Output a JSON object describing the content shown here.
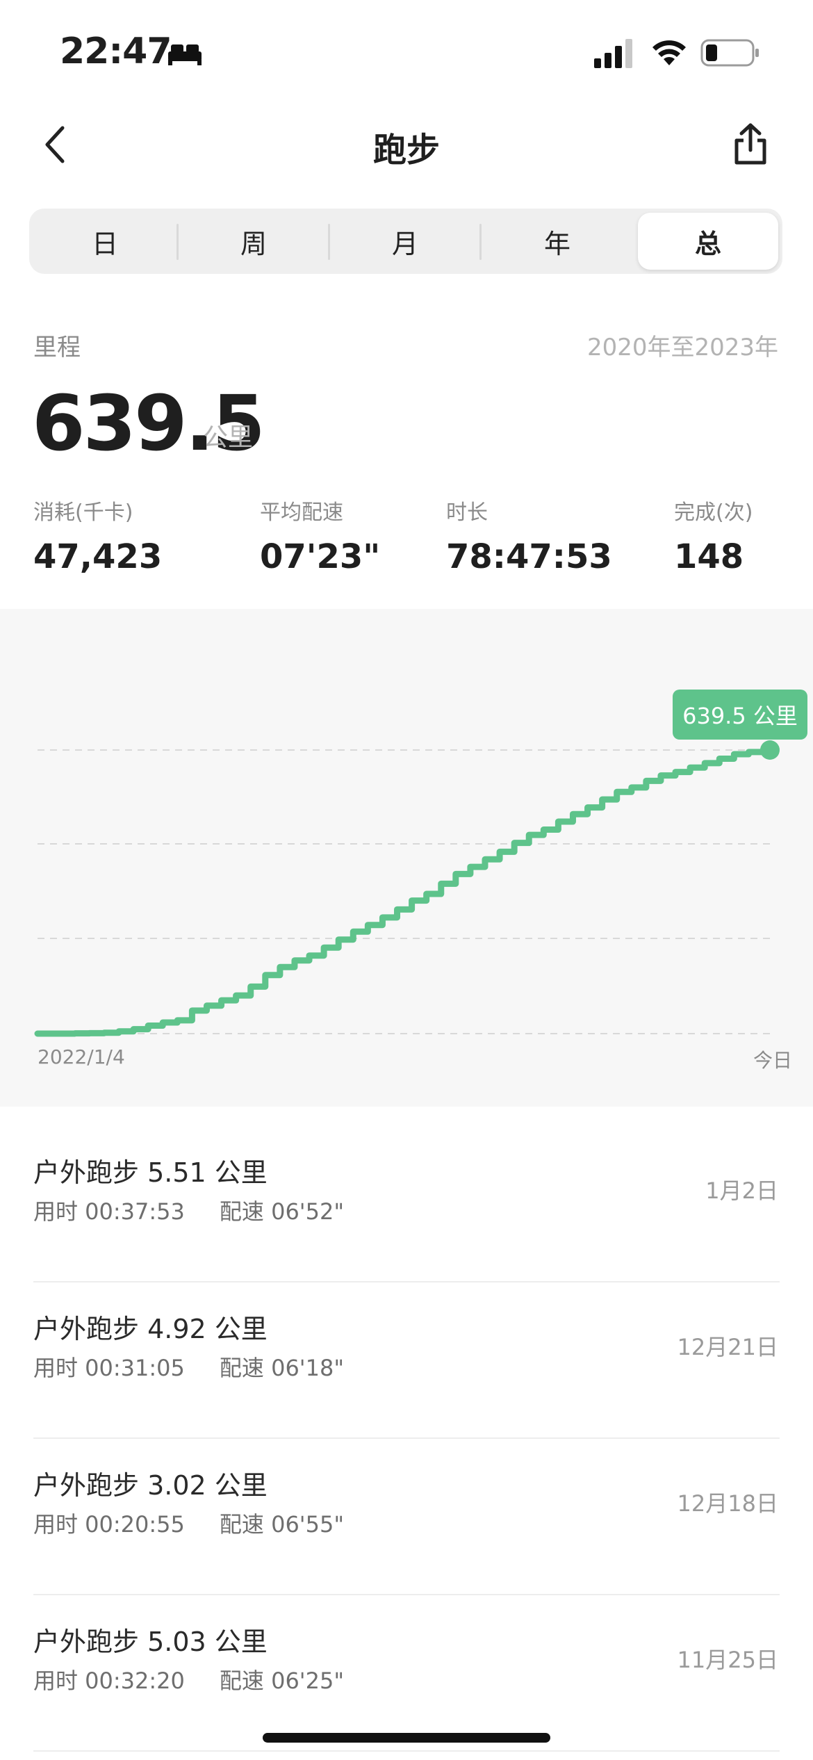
{
  "status_bar": {
    "time": "22:47"
  },
  "nav": {
    "title": "跑步"
  },
  "tabs": [
    {
      "label": "日",
      "active": false
    },
    {
      "label": "周",
      "active": false
    },
    {
      "label": "月",
      "active": false
    },
    {
      "label": "年",
      "active": false
    },
    {
      "label": "总",
      "active": true
    }
  ],
  "summary": {
    "label": "里程",
    "range": "2020年至2023年",
    "value": "639.5",
    "unit": "公里",
    "stats": [
      {
        "label": "消耗(千卡)",
        "value": "47,423"
      },
      {
        "label": "平均配速",
        "value": "07'23\""
      },
      {
        "label": "时长",
        "value": "78:47:53"
      },
      {
        "label": "完成(次)",
        "value": "148"
      }
    ]
  },
  "chart": {
    "start_label": "2022/1/4",
    "end_label": "今日",
    "tooltip": "639.5 公里",
    "accent_color": "#5ec38b"
  },
  "chart_data": {
    "type": "line",
    "x_start": "2022/1/4",
    "x_end": "今日",
    "ylim": [
      0,
      639.5
    ],
    "grid": true,
    "series": [
      {
        "values": [
          0,
          0,
          0,
          0.5,
          1,
          2,
          5,
          10,
          18,
          25,
          30,
          52,
          63,
          75,
          86,
          106,
          132,
          150,
          165,
          176,
          194,
          212,
          230,
          245,
          262,
          280,
          300,
          315,
          338,
          360,
          376,
          393,
          410,
          430,
          448,
          460,
          478,
          495,
          510,
          528,
          545,
          555,
          570,
          582,
          590,
          600,
          610,
          620,
          630,
          635,
          639.5
        ]
      }
    ]
  },
  "activities": [
    {
      "title": "户外跑步 5.51 公里",
      "duration": "用时 00:37:53",
      "pace": "配速 06'52\"",
      "date": "1月2日"
    },
    {
      "title": "户外跑步 4.92 公里",
      "duration": "用时 00:31:05",
      "pace": "配速 06'18\"",
      "date": "12月21日"
    },
    {
      "title": "户外跑步 3.02 公里",
      "duration": "用时 00:20:55",
      "pace": "配速 06'55\"",
      "date": "12月18日"
    },
    {
      "title": "户外跑步 5.03 公里",
      "duration": "用时 00:32:20",
      "pace": "配速 06'25\"",
      "date": "11月25日"
    }
  ]
}
